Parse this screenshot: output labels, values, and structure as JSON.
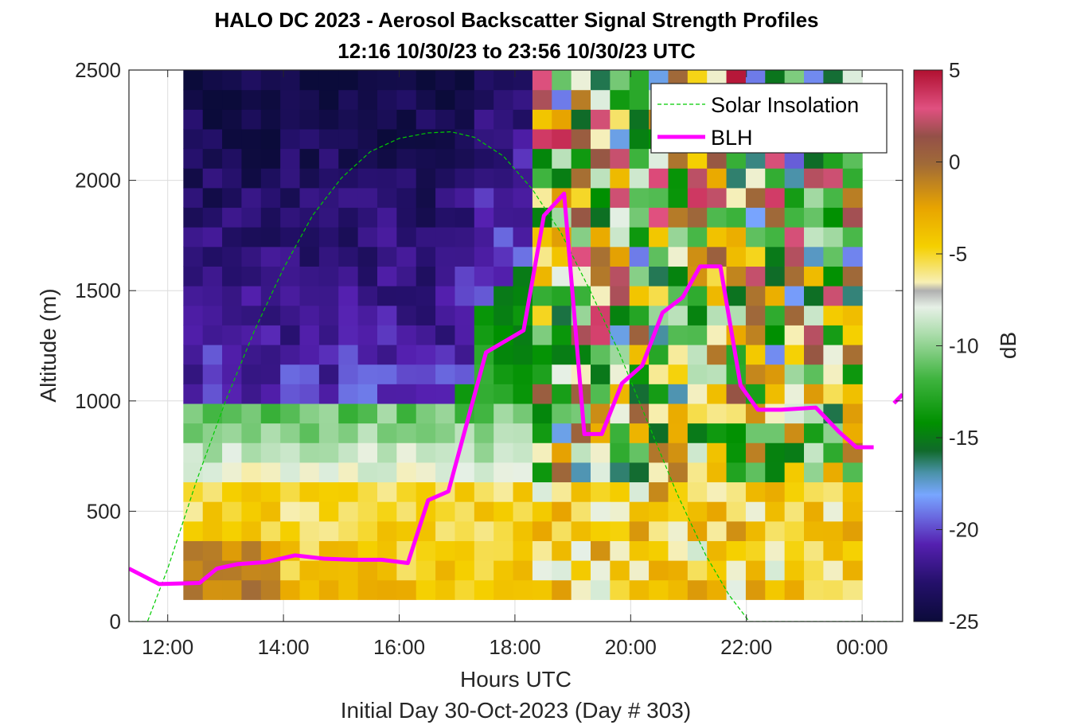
{
  "title_line1": "HALO DC 2023 - Aerosol Backscatter Signal Strength Profiles",
  "title_line2": "12:16 10/30/23 to 23:56 10/30/23  UTC",
  "chart_data": {
    "type": "heatmap",
    "title": "HALO DC 2023 - Aerosol Backscatter Signal Strength Profiles",
    "subtitle": "12:16 10/30/23 to 23:56 10/30/23  UTC",
    "xlabel": "Hours UTC",
    "xlabel2": "Initial Day 30-Oct-2023 (Day # 303)",
    "ylabel": "Altitude (m)",
    "xlim": [
      11.33,
      24.7
    ],
    "ylim": [
      0,
      2500
    ],
    "x_ticks": [
      12,
      14,
      16,
      18,
      20,
      22,
      24
    ],
    "x_tick_labels": [
      "12:00",
      "14:00",
      "16:00",
      "18:00",
      "20:00",
      "22:00",
      "00:00"
    ],
    "y_ticks": [
      0,
      500,
      1000,
      1500,
      2000,
      2500
    ],
    "y_tick_labels": [
      "0",
      "500",
      "1000",
      "1500",
      "2000",
      "2500"
    ],
    "grid": true,
    "legend_position": "top-right",
    "colorbar": {
      "label": "dB",
      "range": [
        -25,
        5
      ],
      "ticks": [
        5,
        0,
        -5,
        -10,
        -15,
        -20,
        -25
      ],
      "tick_labels": [
        "5",
        "0",
        "-5",
        "-10",
        "-15",
        "-20",
        "-25"
      ]
    },
    "heatmap": {
      "x_start": 12.27,
      "x_end": 24.0,
      "y_start": 100,
      "y_end": 2500,
      "description_by_layer": [
        {
          "layer": "surface",
          "alt_range": [
            100,
            650
          ],
          "db": -6
        },
        {
          "layer": "transition",
          "alt_range": [
            650,
            1000
          ],
          "db": -11
        },
        {
          "layer": "boundary-layer",
          "alt_range": [
            1000,
            1800
          ],
          "db": -15
        },
        {
          "layer": "free-troposphere",
          "alt_range": [
            1800,
            2500
          ],
          "db": -22
        }
      ]
    },
    "series": [
      {
        "name": "Solar Insolation",
        "style": "dashed",
        "color": "#00cc00",
        "x": [
          11.33,
          11.65,
          12.0,
          12.5,
          13.0,
          13.5,
          14.0,
          14.5,
          15.0,
          15.5,
          16.0,
          16.5,
          16.9,
          17.3,
          17.8,
          18.3,
          18.8,
          19.3,
          19.8,
          20.3,
          20.8,
          21.3,
          21.7,
          22.05,
          22.5,
          23.5,
          24.7
        ],
        "y": [
          0,
          0,
          240,
          640,
          1000,
          1320,
          1600,
          1840,
          2010,
          2130,
          2190,
          2215,
          2220,
          2195,
          2110,
          1960,
          1760,
          1500,
          1220,
          900,
          580,
          300,
          120,
          0,
          0,
          0,
          0
        ]
      },
      {
        "name": "BLH",
        "style": "solid",
        "color": "#ff00ff",
        "x": [
          11.33,
          11.85,
          12.55,
          12.85,
          13.2,
          13.7,
          14.2,
          14.7,
          15.2,
          15.7,
          16.15,
          16.5,
          16.85,
          17.5,
          18.15,
          18.5,
          18.85,
          19.2,
          19.5,
          19.85,
          20.2,
          20.55,
          20.9,
          21.2,
          21.55,
          21.9,
          22.2,
          22.6,
          23.2,
          23.6,
          23.9,
          24.2
        ],
        "y": [
          240,
          170,
          175,
          240,
          260,
          270,
          300,
          285,
          280,
          280,
          265,
          550,
          590,
          1220,
          1320,
          1840,
          1940,
          850,
          850,
          1080,
          1160,
          1400,
          1470,
          1610,
          1610,
          1070,
          960,
          960,
          970,
          860,
          790,
          790
        ]
      },
      {
        "name": "",
        "style": "solid",
        "color": "#ff00ff",
        "x": [
          24.55,
          24.7
        ],
        "y": [
          990,
          1030
        ]
      }
    ]
  }
}
